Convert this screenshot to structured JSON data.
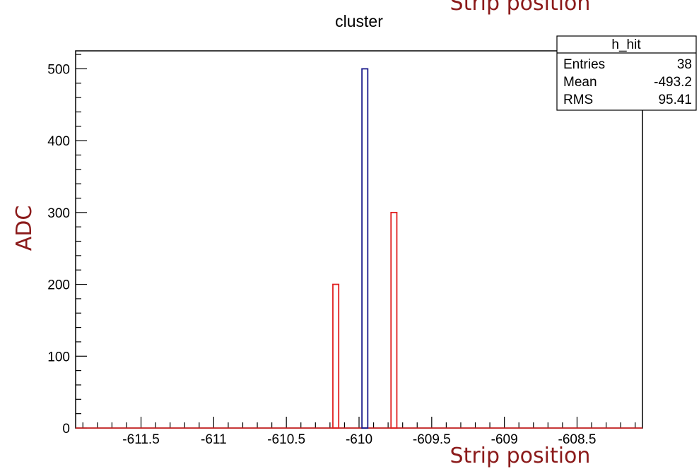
{
  "chart_data": {
    "type": "bar",
    "title": "cluster",
    "xlabel": "Strip position",
    "ylabel": "ADC",
    "header_label": "Strip position",
    "xlim": [
      -611.95,
      -608.05
    ],
    "ylim": [
      0,
      525
    ],
    "x_ticks": [
      -611.5,
      -611,
      -610.5,
      -610,
      -609.5,
      -609,
      -608.5
    ],
    "x_tick_labels": [
      "-611.5",
      "-611",
      "-610.5",
      "-610",
      "-609.5",
      "-609",
      "-608.5"
    ],
    "y_ticks": [
      0,
      100,
      200,
      300,
      400,
      500
    ],
    "y_tick_labels": [
      "0",
      "100",
      "200",
      "300",
      "400",
      "500"
    ],
    "grid": false,
    "series": [
      {
        "color": "#e02020",
        "bars": [
          {
            "x": -610.16,
            "value": 200
          },
          {
            "x": -609.76,
            "value": 300
          }
        ]
      },
      {
        "color": "#1a1a8c",
        "bars": [
          {
            "x": -609.96,
            "value": 500
          }
        ]
      }
    ],
    "stats_box": {
      "name": "h_hit",
      "rows": [
        {
          "label": "Entries",
          "value": "38"
        },
        {
          "label": "Mean",
          "value": "-493.2"
        },
        {
          "label": "RMS",
          "value": "95.41"
        }
      ]
    }
  },
  "colors": {
    "axis_label": "#8b1a1a",
    "baseline": "#e02020"
  }
}
